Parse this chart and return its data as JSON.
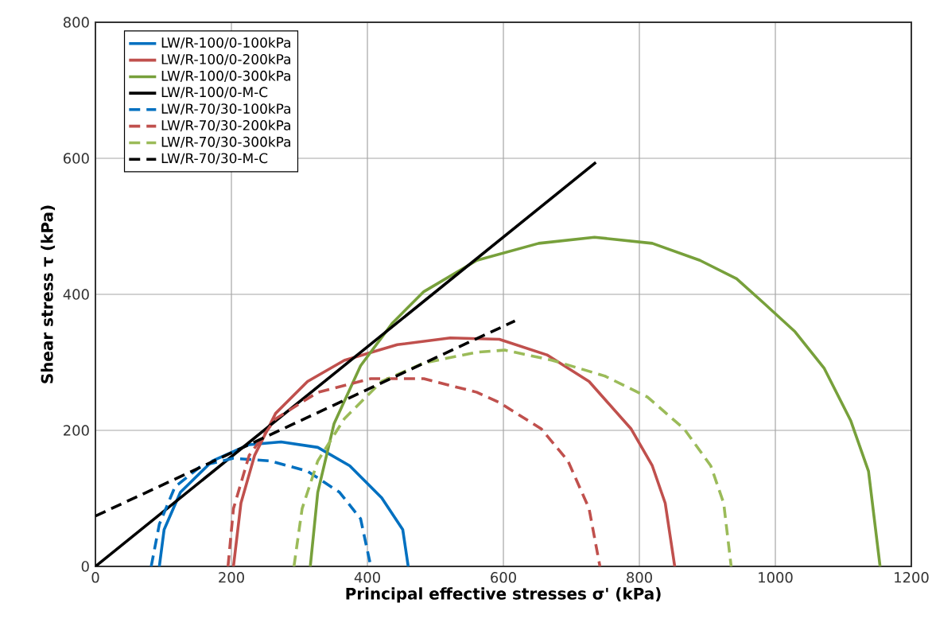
{
  "chart_data": {
    "type": "line",
    "xlabel": "Principal effective stresses σ' (kPa)",
    "ylabel": "Shear stress τ (kPa)",
    "xlim": [
      0,
      1200
    ],
    "ylim": [
      0,
      800
    ],
    "xticks": [
      0,
      200,
      400,
      600,
      800,
      1000,
      1200
    ],
    "yticks": [
      0,
      200,
      400,
      600,
      800
    ],
    "grid": true,
    "legend": "top left",
    "marker": "none",
    "series": [
      {
        "name": "LW/R-100/0-100kPa",
        "color": "#0070c0",
        "line_style": "solid",
        "x": [
          94,
          101,
          125,
          172,
          226,
          273,
          327,
          374,
          421,
          452,
          460
        ],
        "values": [
          0,
          54,
          109,
          155,
          179,
          183,
          175,
          148,
          101,
          54,
          0
        ]
      },
      {
        "name": "LW/R-100/0-200kPa",
        "color": "#c0504d",
        "line_style": "solid",
        "x": [
          203,
          214,
          234,
          265,
          312,
          366,
          444,
          522,
          594,
          664,
          726,
          788,
          819,
          838,
          852
        ],
        "values": [
          0,
          93,
          163,
          225,
          272,
          303,
          326,
          336,
          334,
          311,
          272,
          202,
          148,
          93,
          0
        ]
      },
      {
        "name": "LW/R-100/0-300kPa",
        "color": "#77a03b",
        "line_style": "solid",
        "x": [
          316,
          327,
          351,
          390,
          437,
          483,
          561,
          652,
          734,
          819,
          889,
          943,
          982,
          1029,
          1072,
          1111,
          1137,
          1154
        ],
        "values": [
          0,
          109,
          210,
          295,
          358,
          404,
          450,
          475,
          484,
          475,
          450,
          423,
          388,
          345,
          291,
          214,
          140,
          0
        ]
      },
      {
        "name": "LW/R-100/0-M-C",
        "color": "#000000",
        "line_style": "solid",
        "x": [
          0,
          736
        ],
        "values": [
          0,
          594
        ]
      },
      {
        "name": "LW/R-70/30-100kPa",
        "color": "#0070c0",
        "line_style": "dashed",
        "x": [
          82,
          94,
          117,
          156,
          203,
          257,
          312,
          359,
          390,
          405
        ],
        "values": [
          0,
          62,
          117,
          148,
          159,
          155,
          140,
          109,
          70,
          0
        ]
      },
      {
        "name": "LW/R-70/30-200kPa",
        "color": "#c0504d",
        "line_style": "dashed",
        "x": [
          195,
          203,
          226,
          265,
          327,
          405,
          483,
          561,
          594,
          656,
          695,
          726,
          742
        ],
        "values": [
          0,
          85,
          163,
          217,
          256,
          276,
          276,
          256,
          241,
          202,
          155,
          85,
          0
        ]
      },
      {
        "name": "LW/R-70/30-300kPa",
        "color": "#9bbb59",
        "line_style": "dashed",
        "x": [
          292,
          304,
          327,
          366,
          421,
          483,
          561,
          602,
          672,
          749,
          812,
          866,
          905,
          924,
          935
        ],
        "values": [
          0,
          85,
          155,
          217,
          272,
          299,
          315,
          318,
          303,
          280,
          249,
          202,
          148,
          93,
          0
        ]
      },
      {
        "name": "LW/R-70/30-M-C",
        "color": "#000000",
        "line_style": "dashed",
        "x": [
          0,
          617
        ],
        "values": [
          74,
          361
        ]
      }
    ]
  }
}
